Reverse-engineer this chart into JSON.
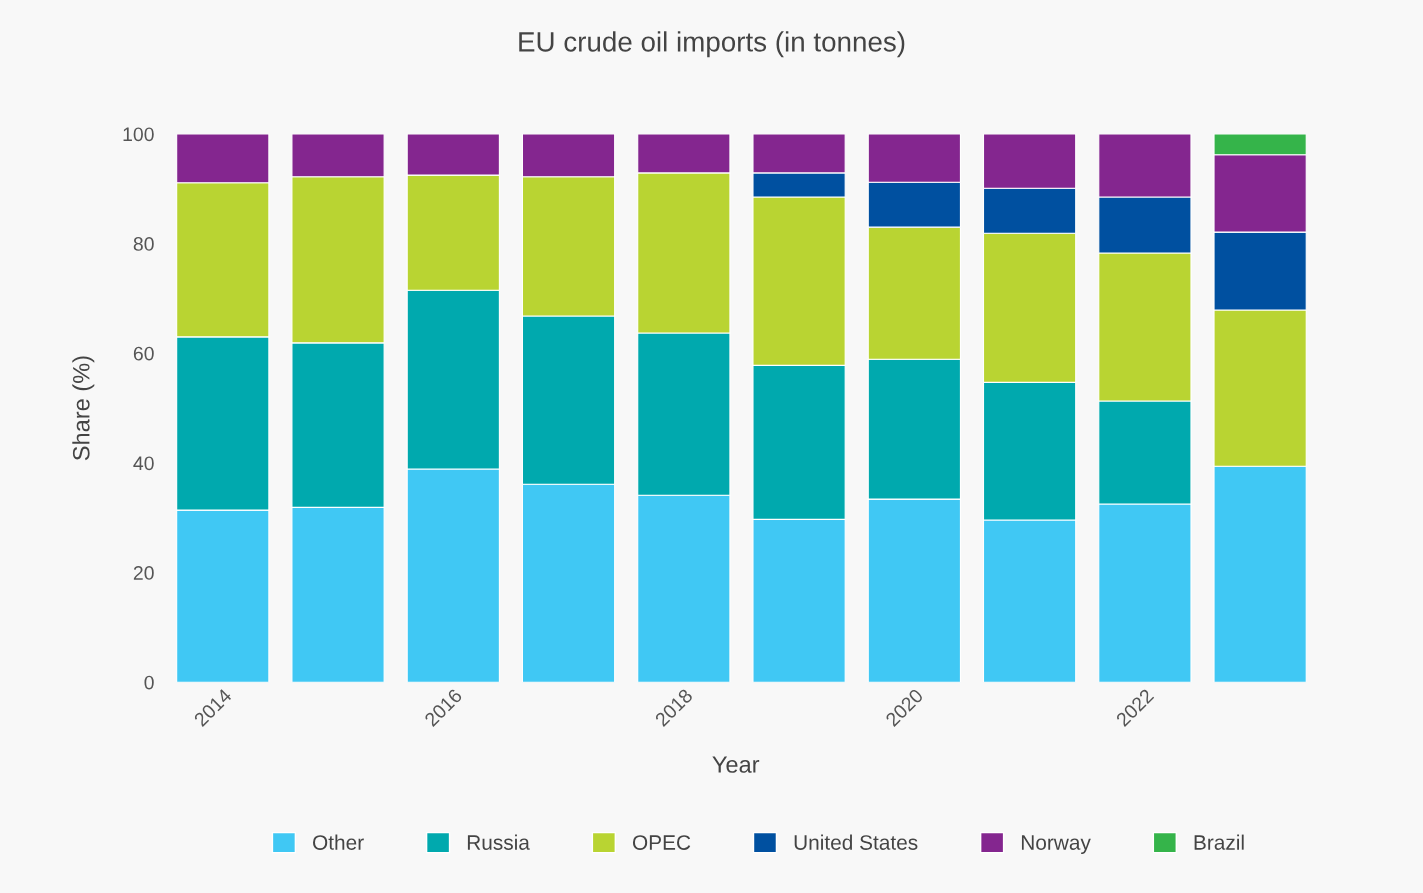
{
  "chart_data": {
    "type": "bar",
    "stacked": true,
    "title": "EU crude oil imports (in tonnes)",
    "xlabel": "Year",
    "ylabel": "Share (%)",
    "categories": [
      "2014",
      null,
      "2016",
      null,
      "2018",
      null,
      "2020",
      null,
      "2022",
      null
    ],
    "series": [
      {
        "name": "Other",
        "color": "#40c8f4",
        "values": [
          31.4,
          31.9,
          38.9,
          36.1,
          34.1,
          29.7,
          33.4,
          29.6,
          32.5,
          39.4
        ]
      },
      {
        "name": "Russia",
        "color": "#00a9ae",
        "values": [
          31.6,
          30.0,
          32.6,
          30.7,
          29.6,
          28.1,
          25.5,
          25.1,
          18.8,
          null
        ]
      },
      {
        "name": "OPEC",
        "color": "#b9d432",
        "values": [
          28.1,
          30.3,
          21.0,
          25.4,
          29.2,
          30.7,
          24.1,
          27.2,
          27.0,
          28.5
        ]
      },
      {
        "name": "United States",
        "color": "#0050a0",
        "values": [
          null,
          null,
          null,
          null,
          null,
          4.4,
          8.2,
          8.2,
          10.2,
          14.2
        ]
      },
      {
        "name": "Norway",
        "color": "#84268f",
        "values": [
          8.9,
          7.8,
          7.5,
          7.8,
          7.1,
          7.1,
          8.8,
          9.9,
          11.5,
          14.1
        ]
      },
      {
        "name": "Brazil",
        "color": "#35b44a",
        "values": [
          null,
          null,
          null,
          null,
          null,
          null,
          null,
          null,
          null,
          3.8
        ]
      }
    ],
    "ylim": [
      0,
      100
    ],
    "yticks": [
      0,
      20,
      40,
      60,
      80,
      100
    ],
    "grid": false,
    "legend": "bottom"
  }
}
